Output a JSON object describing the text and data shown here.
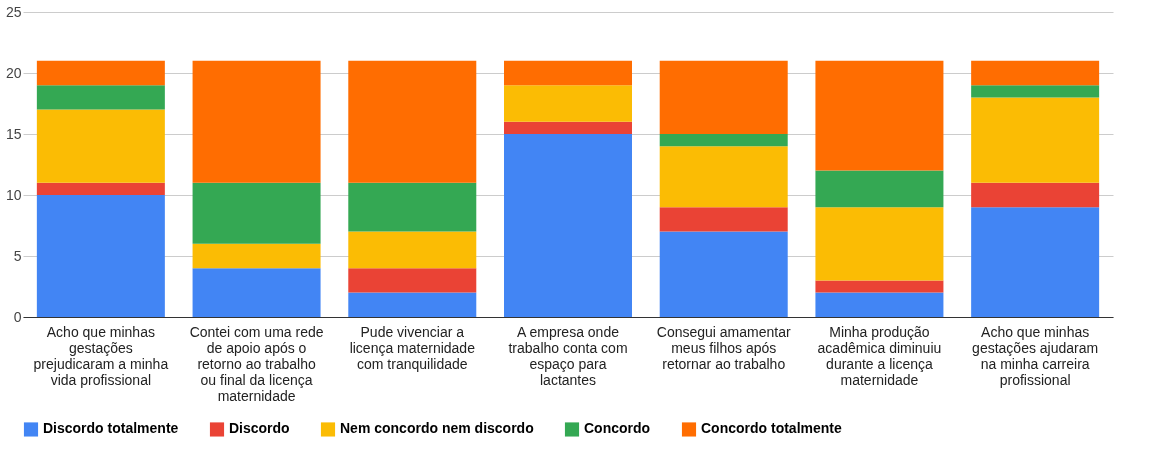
{
  "chart_data": {
    "type": "bar",
    "stacked": true,
    "categories": [
      "Acho que minhas gestações prejudicaram a minha vida profissional",
      "Contei com uma rede de apoio após o retorno ao trabalho ou final da licença maternidade",
      "Pude vivenciar a licença maternidade com tranquilidade",
      "A empresa onde trabalho conta com espaço para lactantes",
      "Consegui amamentar meus filhos após retornar ao trabalho",
      "Minha produção acadêmica diminuiu durante a licença maternidade",
      "Acho que minhas gestações ajudaram na minha carreira profissional"
    ],
    "series": [
      {
        "name": "Discordo totalmente",
        "color": "#4285f4",
        "values": [
          10,
          4,
          2,
          15,
          7,
          2,
          9
        ]
      },
      {
        "name": "Discordo",
        "color": "#ea4335",
        "values": [
          1,
          0,
          2,
          1,
          2,
          1,
          2
        ]
      },
      {
        "name": "Nem concordo nem discordo",
        "color": "#fbbc04",
        "values": [
          6,
          2,
          3,
          3,
          5,
          6,
          7
        ]
      },
      {
        "name": "Concordo",
        "color": "#34a853",
        "values": [
          2,
          5,
          4,
          0,
          1,
          3,
          1
        ]
      },
      {
        "name": "Concordo totalmente",
        "color": "#ff6d01",
        "values": [
          2,
          10,
          10,
          2,
          6,
          9,
          2
        ]
      }
    ],
    "ylim": [
      0,
      25
    ],
    "yticks": [
      0,
      5,
      10,
      15,
      20,
      25
    ],
    "grid": "y",
    "legend": "bottom"
  }
}
